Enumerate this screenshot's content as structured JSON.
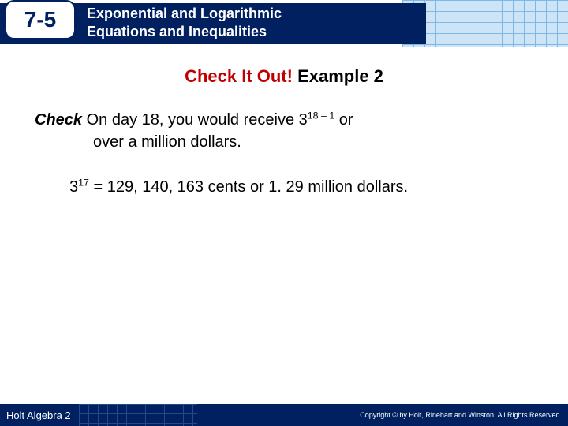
{
  "header": {
    "lesson_number": "7-5",
    "title_line1": "Exponential and Logarithmic",
    "title_line2": "Equations and Inequalities"
  },
  "subheading": {
    "red_part": "Check It Out!",
    "black_part": " Example 2"
  },
  "body": {
    "check_label": "Check",
    "line1_part1": "  On day 18, you would receive 3",
    "line1_sup": "18 – 1",
    "line1_part2": " or",
    "line2": "over a million dollars.",
    "eq_base": "3",
    "eq_sup": "17",
    "eq_rest": " = 129, 140, 163 cents or 1. 29 million dollars."
  },
  "footer": {
    "left": "Holt Algebra 2",
    "right": "Copyright © by Holt, Rinehart and Winston. All Rights Reserved."
  },
  "colors": {
    "navy": "#002060",
    "red": "#c00000",
    "grid_light": "#cce4f5",
    "grid_line": "#7fb8e6"
  }
}
